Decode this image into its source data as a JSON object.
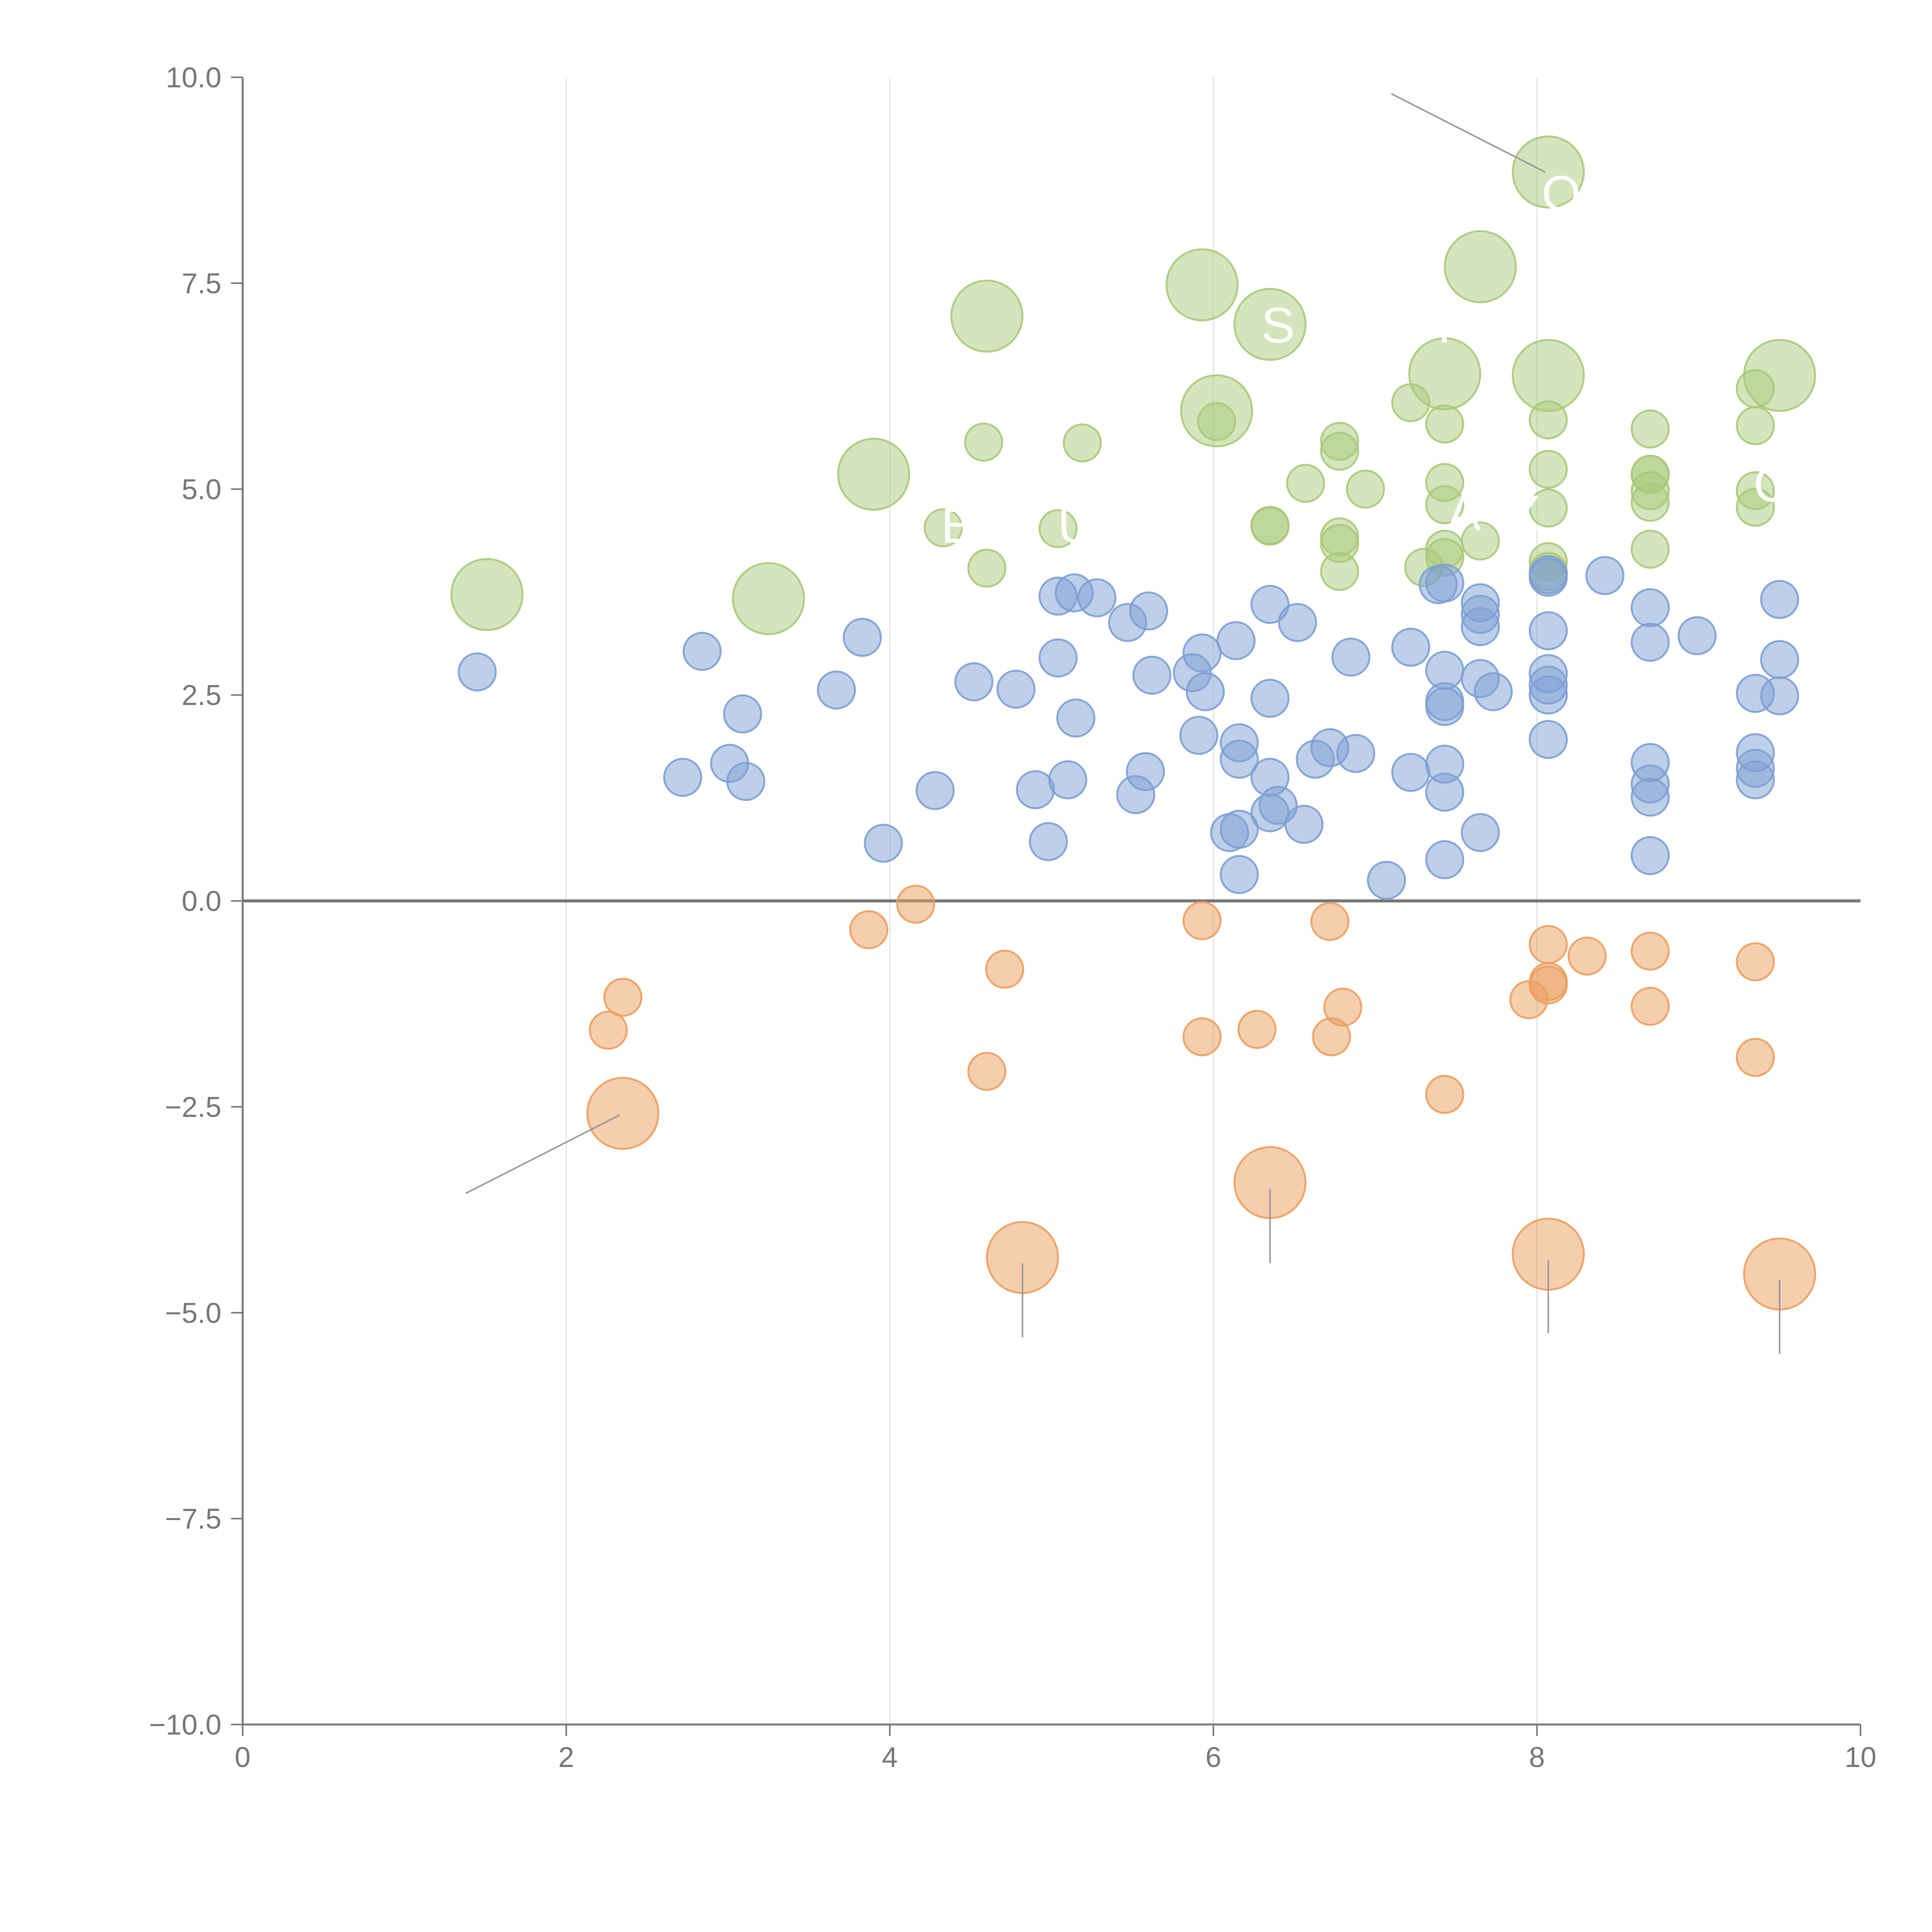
{
  "chart_data": {
    "type": "scatter",
    "subtype": "bubble",
    "title": "",
    "xlabel": "",
    "ylabel": "",
    "xlim": [
      0,
      10
    ],
    "ylim": [
      -10,
      10
    ],
    "x_ticks": [
      "0",
      "2",
      "4",
      "6",
      "8",
      "10"
    ],
    "y_ticks": [
      "10.0",
      "7.5",
      "5.0",
      "2.5",
      "0.0",
      "−2.5",
      "−5.0",
      "−7.5",
      "−10.0"
    ],
    "x_tick_values": [
      0,
      2,
      4,
      6,
      8,
      10
    ],
    "y_tick_values": [
      10,
      7.5,
      5,
      2.5,
      0,
      -2.5,
      -5,
      -7.5,
      -10
    ],
    "grid_x": true,
    "zero_line": true,
    "colors": {
      "green": "#a9c97a",
      "blue": "#7d9fd3",
      "orange": "#ec9e5e"
    },
    "series": [
      {
        "name": "green",
        "color": "#a9c97a",
        "small": [
          [
            4.58,
            5.57
          ],
          [
            5.19,
            5.56
          ],
          [
            4.33,
            4.53
          ],
          [
            4.6,
            4.04
          ],
          [
            5.04,
            4.52
          ],
          [
            6.02,
            5.82
          ],
          [
            6.35,
            4.55
          ],
          [
            6.35,
            4.56
          ],
          [
            6.57,
            5.07
          ],
          [
            6.78,
            5.58
          ],
          [
            6.78,
            5.46
          ],
          [
            6.78,
            4.42
          ],
          [
            6.78,
            4.34
          ],
          [
            6.78,
            4.0
          ],
          [
            6.94,
            5.0
          ],
          [
            7.22,
            6.05
          ],
          [
            7.3,
            4.05
          ],
          [
            7.43,
            5.79
          ],
          [
            7.43,
            5.08
          ],
          [
            7.43,
            4.81
          ],
          [
            7.43,
            4.27
          ],
          [
            7.43,
            4.17
          ],
          [
            7.65,
            4.37
          ],
          [
            8.07,
            5.84
          ],
          [
            8.07,
            5.24
          ],
          [
            8.07,
            4.77
          ],
          [
            8.07,
            4.12
          ],
          [
            8.07,
            4.0
          ],
          [
            8.7,
            5.73
          ],
          [
            8.7,
            5.18
          ],
          [
            8.7,
            5.18
          ],
          [
            8.7,
            4.98
          ],
          [
            8.7,
            4.84
          ],
          [
            8.7,
            4.27
          ],
          [
            9.35,
            6.22
          ],
          [
            9.35,
            5.77
          ],
          [
            9.35,
            4.98
          ],
          [
            9.35,
            4.78
          ]
        ],
        "large": [
          [
            1.51,
            3.72
          ],
          [
            3.25,
            3.67
          ],
          [
            3.9,
            5.18
          ],
          [
            4.6,
            7.1
          ],
          [
            5.93,
            7.48
          ],
          [
            6.02,
            5.95
          ],
          [
            6.35,
            7.0
          ],
          [
            7.43,
            6.4
          ],
          [
            7.65,
            7.7
          ],
          [
            8.07,
            8.85
          ],
          [
            8.07,
            6.38
          ],
          [
            9.5,
            6.38
          ]
        ]
      },
      {
        "name": "blue",
        "color": "#7d9fd3",
        "small": [
          [
            1.45,
            2.78
          ],
          [
            2.72,
            1.5
          ],
          [
            2.84,
            3.03
          ],
          [
            3.01,
            1.67
          ],
          [
            3.09,
            2.27
          ],
          [
            3.11,
            1.45
          ],
          [
            3.67,
            2.56
          ],
          [
            3.83,
            3.2
          ],
          [
            3.96,
            0.7
          ],
          [
            4.28,
            1.34
          ],
          [
            4.52,
            2.66
          ],
          [
            4.78,
            2.57
          ],
          [
            4.9,
            1.35
          ],
          [
            4.98,
            0.72
          ],
          [
            5.04,
            2.95
          ],
          [
            5.04,
            3.7
          ],
          [
            5.1,
            1.47
          ],
          [
            5.14,
            3.74
          ],
          [
            5.15,
            2.22
          ],
          [
            5.28,
            3.68
          ],
          [
            5.47,
            3.38
          ],
          [
            5.52,
            1.29
          ],
          [
            5.58,
            1.57
          ],
          [
            5.6,
            3.52
          ],
          [
            5.62,
            2.74
          ],
          [
            5.87,
            2.77
          ],
          [
            5.91,
            2.01
          ],
          [
            5.93,
            3.01
          ],
          [
            5.95,
            2.54
          ],
          [
            6.1,
            0.83
          ],
          [
            6.14,
            3.16
          ],
          [
            6.16,
            0.32
          ],
          [
            6.16,
            1.72
          ],
          [
            6.16,
            1.92
          ],
          [
            6.16,
            0.87
          ],
          [
            6.35,
            1.07
          ],
          [
            6.35,
            3.6
          ],
          [
            6.35,
            1.5
          ],
          [
            6.35,
            2.46
          ],
          [
            6.4,
            1.16
          ],
          [
            6.52,
            3.38
          ],
          [
            6.56,
            0.93
          ],
          [
            6.63,
            1.72
          ],
          [
            6.72,
            1.86
          ],
          [
            6.85,
            2.96
          ],
          [
            6.88,
            1.79
          ],
          [
            7.07,
            0.25
          ],
          [
            7.22,
            1.56
          ],
          [
            7.22,
            3.08
          ],
          [
            7.39,
            3.84
          ],
          [
            7.43,
            0.5
          ],
          [
            7.43,
            1.32
          ],
          [
            7.43,
            1.66
          ],
          [
            7.43,
            2.36
          ],
          [
            7.43,
            2.42
          ],
          [
            7.43,
            2.8
          ],
          [
            7.43,
            3.86
          ],
          [
            7.65,
            2.7
          ],
          [
            7.65,
            3.33
          ],
          [
            7.65,
            3.48
          ],
          [
            7.65,
            3.62
          ],
          [
            7.65,
            0.83
          ],
          [
            7.73,
            2.54
          ],
          [
            8.07,
            1.96
          ],
          [
            8.07,
            2.5
          ],
          [
            8.07,
            2.62
          ],
          [
            8.07,
            2.76
          ],
          [
            8.07,
            3.28
          ],
          [
            8.07,
            3.93
          ],
          [
            8.07,
            3.96
          ],
          [
            8.42,
            3.95
          ],
          [
            8.7,
            0.55
          ],
          [
            8.7,
            1.26
          ],
          [
            8.7,
            1.42
          ],
          [
            8.7,
            1.68
          ],
          [
            8.7,
            3.14
          ],
          [
            8.7,
            3.56
          ],
          [
            8.99,
            3.22
          ],
          [
            9.35,
            1.47
          ],
          [
            9.35,
            1.61
          ],
          [
            9.35,
            1.8
          ],
          [
            9.35,
            2.52
          ],
          [
            9.5,
            2.49
          ],
          [
            9.5,
            2.93
          ],
          [
            9.5,
            3.66
          ]
        ],
        "large": []
      },
      {
        "name": "orange",
        "color": "#ec9e5e",
        "small": [
          [
            2.26,
            -1.57
          ],
          [
            2.35,
            -1.17
          ],
          [
            3.87,
            -0.35
          ],
          [
            4.16,
            -0.04
          ],
          [
            4.6,
            -2.07
          ],
          [
            4.71,
            -0.83
          ],
          [
            5.93,
            -0.24
          ],
          [
            5.93,
            -1.65
          ],
          [
            6.27,
            -1.56
          ],
          [
            6.72,
            -0.25
          ],
          [
            6.73,
            -1.65
          ],
          [
            6.8,
            -1.29
          ],
          [
            7.43,
            -2.35
          ],
          [
            7.95,
            -1.2
          ],
          [
            8.07,
            -0.53
          ],
          [
            8.07,
            -0.98
          ],
          [
            8.07,
            -1.02
          ],
          [
            8.31,
            -0.67
          ],
          [
            8.7,
            -0.61
          ],
          [
            8.7,
            -1.28
          ],
          [
            9.35,
            -0.74
          ],
          [
            9.35,
            -1.9
          ]
        ],
        "large": [
          [
            2.35,
            -2.58
          ],
          [
            4.82,
            -4.33
          ],
          [
            6.35,
            -3.42
          ],
          [
            8.07,
            -4.29
          ],
          [
            9.5,
            -4.53
          ]
        ]
      }
    ],
    "labels": [
      {
        "text": "S",
        "x": 6.4,
        "y": 6.78
      },
      {
        "text": "R",
        "x": 7.5,
        "y": 6.78
      },
      {
        "text": "E",
        "x": 4.42,
        "y": 4.35
      },
      {
        "text": "U",
        "x": 5.15,
        "y": 4.35
      },
      {
        "text": "A",
        "x": 7.55,
        "y": 4.5
      },
      {
        "text": "X",
        "x": 7.92,
        "y": 4.5
      },
      {
        "text": "C",
        "x": 9.45,
        "y": 4.85
      },
      {
        "text": "O",
        "x": 8.15,
        "y": 8.38
      }
    ],
    "leaders": [
      {
        "x1": 7.1,
        "y1": 9.8,
        "x2": 8.05,
        "y2": 8.85
      },
      {
        "x1": 1.38,
        "y1": -3.55,
        "x2": 2.33,
        "y2": -2.6
      },
      {
        "x1": 4.82,
        "y1": -4.4,
        "x2": 4.82,
        "y2": -5.3
      },
      {
        "x1": 6.35,
        "y1": -3.5,
        "x2": 6.35,
        "y2": -4.4
      },
      {
        "x1": 8.07,
        "y1": -4.36,
        "x2": 8.07,
        "y2": -5.25
      },
      {
        "x1": 9.5,
        "y1": -4.6,
        "x2": 9.5,
        "y2": -5.5
      }
    ]
  }
}
